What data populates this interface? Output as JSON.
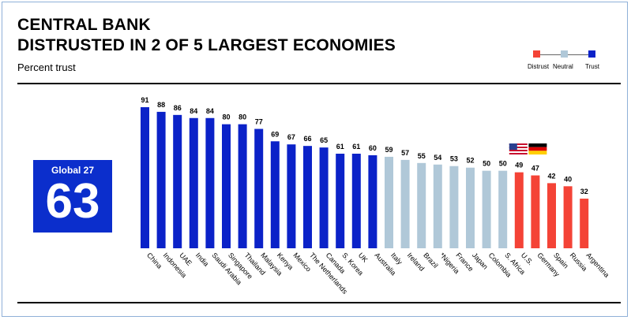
{
  "title_line1": "CENTRAL BANK",
  "title_line2": "DISTRUSTED IN 2 OF 5 LARGEST ECONOMIES",
  "subtitle": "Percent trust",
  "legend": [
    {
      "label": "Distrust",
      "color": "#f44336"
    },
    {
      "label": "Neutral",
      "color": "#b0c8d8"
    },
    {
      "label": "Trust",
      "color": "#0b22c8"
    }
  ],
  "global": {
    "label": "Global 27",
    "value": "63"
  },
  "chart_data": {
    "type": "bar",
    "categories": [
      "China",
      "Indonesia",
      "UAE",
      "India",
      "Saudi Arabia",
      "Singapore",
      "Thailand",
      "Malaysia",
      "Kenya",
      "Mexico",
      "The Netherlands",
      "Canada",
      "S. Korea",
      "UK",
      "Australia",
      "Italy",
      "Ireland",
      "Brazil",
      "*Nigeria",
      "France",
      "Japan",
      "Colombia",
      "S. Africa",
      "U.S.",
      "Germany",
      "Spain",
      "Russia",
      "Argentina"
    ],
    "values": [
      91,
      88,
      86,
      84,
      84,
      80,
      80,
      77,
      69,
      67,
      66,
      65,
      61,
      61,
      60,
      59,
      57,
      55,
      54,
      53,
      52,
      50,
      50,
      49,
      47,
      42,
      40,
      32
    ],
    "levels": [
      "Trust",
      "Trust",
      "Trust",
      "Trust",
      "Trust",
      "Trust",
      "Trust",
      "Trust",
      "Trust",
      "Trust",
      "Trust",
      "Trust",
      "Trust",
      "Trust",
      "Trust",
      "Neutral",
      "Neutral",
      "Neutral",
      "Neutral",
      "Neutral",
      "Neutral",
      "Neutral",
      "Neutral",
      "Distrust",
      "Distrust",
      "Distrust",
      "Distrust",
      "Distrust"
    ],
    "colors": {
      "Trust": "#0b22c8",
      "Neutral": "#b0c8d8",
      "Distrust": "#f44336"
    },
    "flags": {
      "U.S.": "us-flag-icon",
      "Germany": "germany-flag-icon"
    },
    "ylim": [
      0,
      100
    ]
  }
}
